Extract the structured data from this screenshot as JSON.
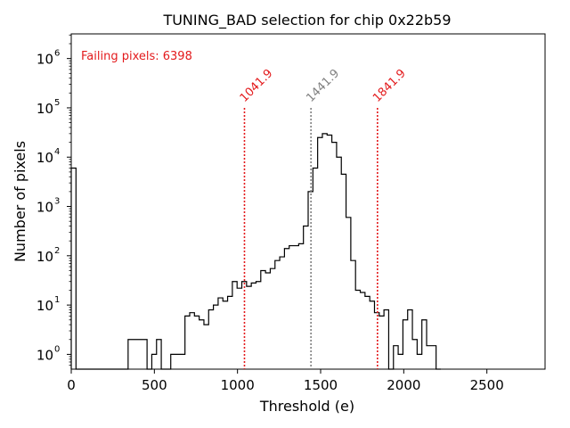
{
  "chart_data": {
    "type": "histogram",
    "title": "TUNING_BAD selection for chip 0x22b59",
    "xlabel": "Threshold (e)",
    "ylabel": "Number of pixels",
    "xlim": [
      0,
      2850
    ],
    "ylog_range": [
      -0.3,
      6.5
    ],
    "x_ticks": [
      0,
      500,
      1000,
      1500,
      2000,
      2500
    ],
    "x_tick_labels": [
      "0",
      "500",
      "1000",
      "1500",
      "2000",
      "2500"
    ],
    "y_ticks": [
      0,
      1,
      2,
      3,
      4,
      5,
      6
    ],
    "y_tick_labels": [
      "10",
      "10",
      "10",
      "10",
      "10",
      "10",
      "10"
    ],
    "y_tick_exponents": [
      "0",
      "1",
      "2",
      "3",
      "4",
      "5",
      "6"
    ],
    "bin_width": 28.5,
    "bins": [
      [
        0,
        6000
      ],
      [
        28.5,
        0
      ],
      [
        57,
        0
      ],
      [
        85.5,
        0
      ],
      [
        114,
        0
      ],
      [
        142.5,
        0
      ],
      [
        171,
        0
      ],
      [
        199.5,
        0
      ],
      [
        228,
        0
      ],
      [
        256.5,
        0
      ],
      [
        285,
        0
      ],
      [
        313.5,
        0
      ],
      [
        342,
        2
      ],
      [
        370.5,
        2
      ],
      [
        399,
        2
      ],
      [
        427.5,
        2
      ],
      [
        456,
        0
      ],
      [
        484.5,
        1
      ],
      [
        513,
        2
      ],
      [
        541.5,
        0
      ],
      [
        570,
        0
      ],
      [
        598.5,
        1
      ],
      [
        627,
        1
      ],
      [
        655.5,
        1
      ],
      [
        684,
        6
      ],
      [
        712.5,
        7
      ],
      [
        741,
        6
      ],
      [
        769.5,
        5
      ],
      [
        798,
        4
      ],
      [
        826.5,
        8
      ],
      [
        855,
        10
      ],
      [
        883.5,
        14
      ],
      [
        912,
        12
      ],
      [
        940.5,
        15
      ],
      [
        969,
        30
      ],
      [
        997.5,
        22
      ],
      [
        1026,
        30
      ],
      [
        1054.5,
        24
      ],
      [
        1083,
        28
      ],
      [
        1111.5,
        30
      ],
      [
        1140,
        50
      ],
      [
        1168.5,
        45
      ],
      [
        1197,
        55
      ],
      [
        1225.5,
        80
      ],
      [
        1254,
        95
      ],
      [
        1282.5,
        140
      ],
      [
        1311,
        160
      ],
      [
        1339.5,
        160
      ],
      [
        1368,
        175
      ],
      [
        1396.5,
        400
      ],
      [
        1425,
        2000
      ],
      [
        1453.5,
        6000
      ],
      [
        1482,
        25000
      ],
      [
        1510.5,
        30000
      ],
      [
        1539,
        28000
      ],
      [
        1567.5,
        20000
      ],
      [
        1596,
        10000
      ],
      [
        1624.5,
        4500
      ],
      [
        1653,
        600
      ],
      [
        1681.5,
        80
      ],
      [
        1710,
        20
      ],
      [
        1738.5,
        18
      ],
      [
        1767,
        15
      ],
      [
        1795.5,
        12
      ],
      [
        1824,
        7
      ],
      [
        1852.5,
        6
      ],
      [
        1881,
        8
      ],
      [
        1909.5,
        0
      ],
      [
        1938,
        1.5
      ],
      [
        1966.5,
        1.0
      ],
      [
        1995,
        5
      ],
      [
        2023.5,
        8
      ],
      [
        2052,
        2
      ],
      [
        2080.5,
        1.0
      ],
      [
        2109,
        5
      ],
      [
        2137.5,
        1.5
      ],
      [
        2166,
        1.5
      ],
      [
        2194.5,
        0
      ]
    ],
    "vlines": [
      {
        "x": 1041.9,
        "label": "1041.9",
        "color": "#e31a1c"
      },
      {
        "x": 1441.9,
        "label": "1441.9",
        "color": "#808080"
      },
      {
        "x": 1841.9,
        "label": "1841.9",
        "color": "#e31a1c"
      }
    ],
    "annotation": {
      "text": "Failing pixels: 6398",
      "color": "#e31a1c"
    }
  }
}
